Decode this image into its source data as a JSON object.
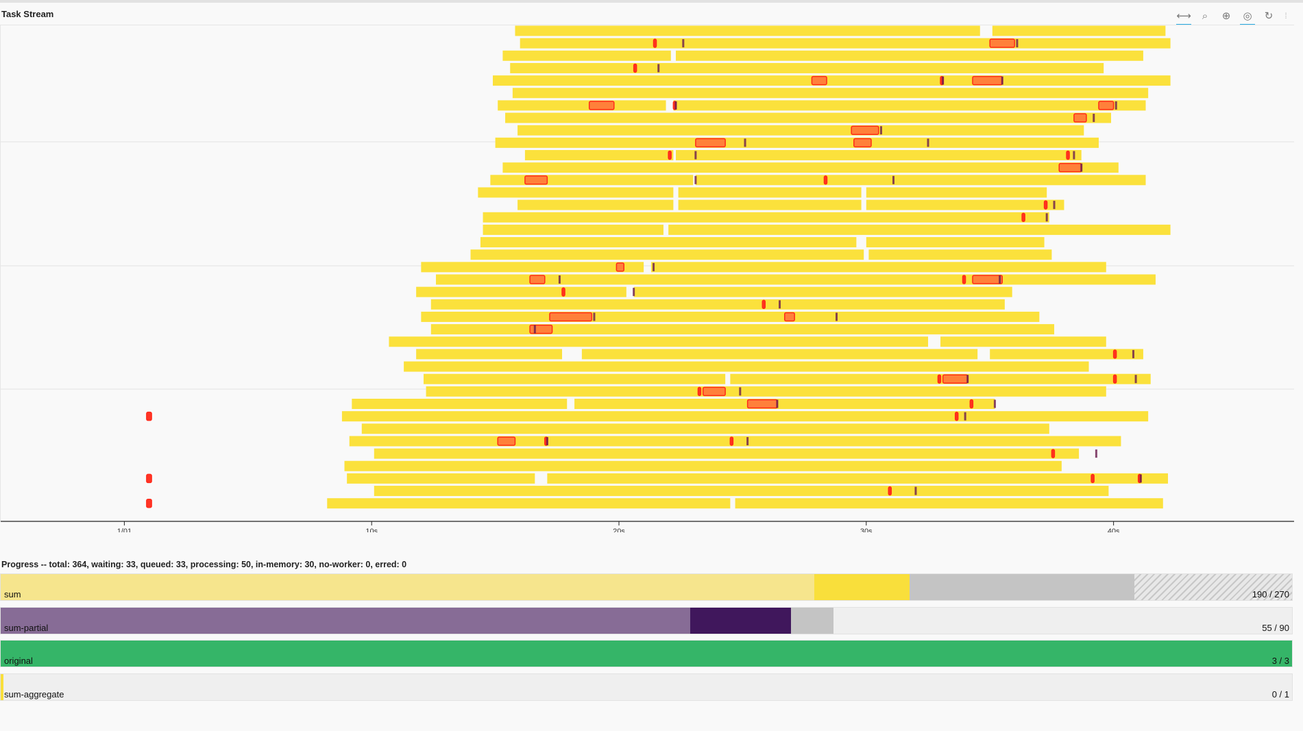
{
  "task_stream": {
    "title": "Task Stream",
    "toolbar": [
      {
        "name": "pan-icon",
        "glyph": "⟷",
        "active": true
      },
      {
        "name": "box-zoom-icon",
        "glyph": "⌕",
        "active": false
      },
      {
        "name": "wheel-zoom-icon",
        "glyph": "⊕",
        "active": false
      },
      {
        "name": "wheel-zoom-active-icon",
        "glyph": "◎",
        "active": true
      },
      {
        "name": "reset-icon",
        "glyph": "↻",
        "active": false
      }
    ],
    "colors": {
      "task": "#fbe13c",
      "transfer": "#ff2a1a",
      "transfer_fill": "#ff7a3a",
      "disk": "#6a1b4d"
    },
    "chart_data": {
      "type": "gantt",
      "title": "",
      "xlabel": "",
      "ylabel": "",
      "x_unit": "seconds",
      "x_range": [
        -4.0,
        48.3
      ],
      "x_ticks": [
        {
          "value": 1,
          "label": "1/01"
        },
        {
          "value": 11,
          "label": "10s"
        },
        {
          "value": 21,
          "label": "20s"
        },
        {
          "value": 31,
          "label": "30s"
        },
        {
          "value": 41,
          "label": "40s"
        }
      ],
      "rows": [
        {
          "tasks": [
            [
              16.8,
              35.6
            ],
            [
              36.1,
              43.1
            ]
          ],
          "transfers": [],
          "disk": []
        },
        {
          "tasks": [
            [
              17.0,
              43.3
            ]
          ],
          "transfers": [
            [
              22.4,
              22.5
            ],
            [
              36.0,
              37.0
            ]
          ],
          "disk": [
            23.6,
            37.1
          ]
        },
        {
          "tasks": [
            [
              16.3,
              23.1
            ],
            [
              23.3,
              42.2
            ]
          ],
          "transfers": [],
          "disk": []
        },
        {
          "tasks": [
            [
              16.6,
              40.6
            ]
          ],
          "transfers": [
            [
              21.6,
              21.7
            ]
          ],
          "disk": [
            22.6
          ]
        },
        {
          "tasks": [
            [
              15.9,
              43.3
            ]
          ],
          "transfers": [
            [
              28.8,
              29.4
            ],
            [
              34.0,
              34.1
            ],
            [
              35.3,
              36.5
            ]
          ],
          "disk": [
            34.1,
            36.5
          ]
        },
        {
          "tasks": [
            [
              16.7,
              42.4
            ]
          ],
          "transfers": [],
          "disk": []
        },
        {
          "tasks": [
            [
              16.1,
              22.9
            ],
            [
              23.2,
              42.3
            ]
          ],
          "transfers": [
            [
              19.8,
              20.8
            ],
            [
              23.2,
              23.3
            ],
            [
              40.4,
              41.0
            ]
          ],
          "disk": [
            23.3,
            41.1
          ]
        },
        {
          "tasks": [
            [
              16.4,
              40.9
            ]
          ],
          "transfers": [
            [
              39.4,
              39.9
            ]
          ],
          "disk": [
            40.2
          ]
        },
        {
          "tasks": [
            [
              16.9,
              39.8
            ]
          ],
          "transfers": [
            [
              30.4,
              31.5
            ]
          ],
          "disk": [
            31.6
          ]
        },
        {
          "tasks": [
            [
              16.0,
              40.4
            ]
          ],
          "transfers": [
            [
              24.1,
              25.3
            ],
            [
              30.5,
              31.2
            ]
          ],
          "disk": [
            26.1,
            33.5
          ]
        },
        {
          "tasks": [
            [
              17.2,
              23.2
            ],
            [
              23.3,
              39.7
            ]
          ],
          "transfers": [
            [
              23.0,
              23.1
            ],
            [
              39.1,
              39.2
            ]
          ],
          "disk": [
            24.1,
            39.4
          ]
        },
        {
          "tasks": [
            [
              16.3,
              41.2
            ]
          ],
          "transfers": [
            [
              38.8,
              39.7
            ]
          ],
          "disk": [
            39.7
          ]
        },
        {
          "tasks": [
            [
              15.8,
              24.0
            ],
            [
              24.1,
              42.3
            ]
          ],
          "transfers": [
            [
              17.2,
              18.1
            ],
            [
              29.3,
              29.4
            ]
          ],
          "disk": [
            24.1,
            32.1
          ]
        },
        {
          "tasks": [
            [
              15.3,
              23.2
            ],
            [
              23.4,
              30.8
            ],
            [
              31.0,
              38.3
            ]
          ],
          "transfers": [],
          "disk": []
        },
        {
          "tasks": [
            [
              16.9,
              23.2
            ],
            [
              23.4,
              30.8
            ],
            [
              31.0,
              39.0
            ]
          ],
          "transfers": [
            [
              38.2,
              38.3
            ]
          ],
          "disk": [
            38.6
          ]
        },
        {
          "tasks": [
            [
              15.5,
              38.4
            ]
          ],
          "transfers": [
            [
              37.3,
              37.4
            ]
          ],
          "disk": [
            38.3
          ]
        },
        {
          "tasks": [
            [
              15.5,
              22.8
            ],
            [
              23.0,
              43.3
            ]
          ],
          "transfers": [],
          "disk": []
        },
        {
          "tasks": [
            [
              15.4,
              30.6
            ],
            [
              31.0,
              38.2
            ]
          ],
          "transfers": [],
          "disk": []
        },
        {
          "tasks": [
            [
              15.0,
              30.9
            ],
            [
              31.1,
              38.5
            ]
          ],
          "transfers": [],
          "disk": []
        },
        {
          "tasks": [
            [
              13.0,
              22.0
            ],
            [
              22.3,
              40.7
            ]
          ],
          "transfers": [
            [
              20.9,
              21.2
            ]
          ],
          "disk": [
            22.4
          ]
        },
        {
          "tasks": [
            [
              13.6,
              42.7
            ]
          ],
          "transfers": [
            [
              17.4,
              18.0
            ],
            [
              34.9,
              35.0
            ],
            [
              35.3,
              36.5
            ]
          ],
          "disk": [
            18.6,
            36.4
          ]
        },
        {
          "tasks": [
            [
              12.8,
              21.3
            ],
            [
              21.6,
              36.9
            ]
          ],
          "transfers": [
            [
              18.7,
              18.8
            ]
          ],
          "disk": [
            21.6
          ]
        },
        {
          "tasks": [
            [
              13.4,
              36.6
            ]
          ],
          "transfers": [
            [
              26.8,
              26.9
            ]
          ],
          "disk": [
            27.5
          ]
        },
        {
          "tasks": [
            [
              13.0,
              38.0
            ]
          ],
          "transfers": [
            [
              18.2,
              19.9
            ],
            [
              27.7,
              28.1
            ]
          ],
          "disk": [
            20.0,
            29.8
          ]
        },
        {
          "tasks": [
            [
              13.4,
              38.6
            ]
          ],
          "transfers": [
            [
              17.4,
              18.3
            ]
          ],
          "disk": [
            17.6
          ]
        },
        {
          "tasks": [
            [
              11.7,
              33.5
            ],
            [
              34.0,
              40.7
            ]
          ],
          "transfers": [],
          "disk": []
        },
        {
          "tasks": [
            [
              12.8,
              18.7
            ],
            [
              19.5,
              35.5
            ],
            [
              36.0,
              42.2
            ]
          ],
          "transfers": [
            [
              41.0,
              41.1
            ]
          ],
          "disk": [
            41.8
          ]
        },
        {
          "tasks": [
            [
              12.3,
              40.0
            ]
          ],
          "transfers": [],
          "disk": []
        },
        {
          "tasks": [
            [
              13.1,
              25.3
            ],
            [
              25.5,
              42.5
            ]
          ],
          "transfers": [
            [
              33.9,
              34.0
            ],
            [
              34.1,
              35.1
            ],
            [
              41.0,
              41.1
            ]
          ],
          "disk": [
            35.1,
            41.9
          ]
        },
        {
          "tasks": [
            [
              13.2,
              40.7
            ]
          ],
          "transfers": [
            [
              24.2,
              24.3
            ],
            [
              24.4,
              25.3
            ]
          ],
          "disk": [
            25.9
          ]
        },
        {
          "tasks": [
            [
              10.2,
              18.9
            ],
            [
              19.2,
              36.2
            ]
          ],
          "transfers": [
            [
              26.2,
              27.4
            ],
            [
              35.2,
              35.3
            ]
          ],
          "disk": [
            27.4,
            36.2
          ]
        },
        {
          "tasks": [
            [
              9.8,
              42.4
            ]
          ],
          "transfers": [
            [
              1.9,
              2.1
            ],
            [
              34.6,
              34.7
            ]
          ],
          "disk": [
            35.0
          ]
        },
        {
          "tasks": [
            [
              10.6,
              38.4
            ]
          ],
          "transfers": [],
          "disk": []
        },
        {
          "tasks": [
            [
              10.1,
              41.3
            ]
          ],
          "transfers": [
            [
              16.1,
              16.8
            ],
            [
              18.0,
              18.1
            ],
            [
              25.5,
              25.6
            ]
          ],
          "disk": [
            18.1,
            26.2
          ]
        },
        {
          "tasks": [
            [
              11.1,
              39.6
            ]
          ],
          "transfers": [
            [
              38.5,
              38.6
            ]
          ],
          "disk": [
            40.3
          ]
        },
        {
          "tasks": [
            [
              9.9,
              38.9
            ]
          ],
          "transfers": [],
          "disk": []
        },
        {
          "tasks": [
            [
              10.0,
              17.6
            ],
            [
              18.1,
              43.2
            ]
          ],
          "transfers": [
            [
              1.9,
              2.1
            ],
            [
              40.1,
              40.2
            ],
            [
              42.0,
              42.1
            ]
          ],
          "disk": [
            42.1
          ]
        },
        {
          "tasks": [
            [
              11.1,
              40.8
            ]
          ],
          "transfers": [
            [
              31.9,
              32.0
            ]
          ],
          "disk": [
            33.0
          ]
        },
        {
          "tasks": [
            [
              9.2,
              25.5
            ],
            [
              25.7,
              43.0
            ]
          ],
          "transfers": [
            [
              1.9,
              2.1
            ]
          ],
          "disk": []
        }
      ]
    }
  },
  "progress": {
    "title": "Progress -- total: 364, waiting: 33, queued: 33, processing: 50, in-memory: 30, no-worker: 0, erred: 0",
    "bars": [
      {
        "name": "sum",
        "count": "190 / 270",
        "segments": [
          {
            "frac": 0.63,
            "color": "#f6e58d",
            "style": "solid"
          },
          {
            "frac": 0.074,
            "color": "#f9df3b",
            "style": "solid"
          },
          {
            "frac": 0.174,
            "color": "#c4c4c4",
            "style": "solid"
          },
          {
            "frac": 0.122,
            "color": "#c4c4c4",
            "style": "hatched"
          }
        ]
      },
      {
        "name": "sum-partial",
        "count": "55 / 90",
        "segments": [
          {
            "frac": 0.534,
            "color": "#876c96",
            "style": "solid"
          },
          {
            "frac": 0.078,
            "color": "#40175c",
            "style": "solid"
          },
          {
            "frac": 0.033,
            "color": "#c4c4c4",
            "style": "solid"
          }
        ]
      },
      {
        "name": "original",
        "count": "3 / 3",
        "segments": [
          {
            "frac": 1.0,
            "color": "#35b568",
            "style": "solid"
          }
        ]
      },
      {
        "name": "sum-aggregate",
        "count": "0 / 1",
        "segments": [
          {
            "frac": 0.002,
            "color": "#f9df3b",
            "style": "solid"
          }
        ]
      }
    ]
  }
}
